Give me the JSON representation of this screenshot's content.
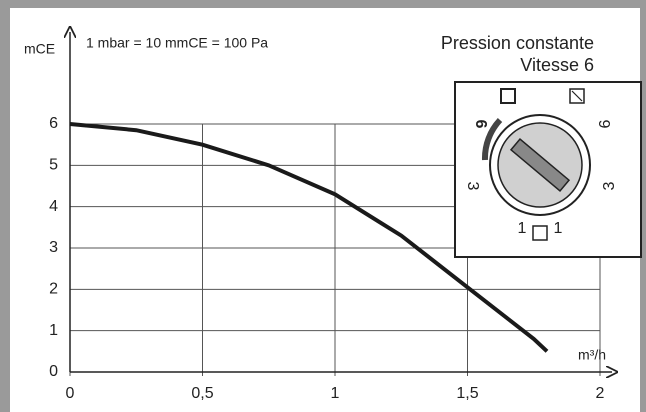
{
  "chart_data": {
    "type": "line",
    "note": "1 mbar = 10 mmCE = 100 Pa",
    "title": "Pression constante",
    "subtitle": "Vitesse 6",
    "ylabel": "mCE",
    "xlabel": "m³/h",
    "dial_marks": [
      "6",
      "3",
      "1",
      "1",
      "3",
      "6"
    ],
    "x": [
      0,
      0.25,
      0.5,
      0.75,
      1,
      1.25,
      1.5,
      1.75,
      1.8
    ],
    "series": [
      {
        "color": "#1a1a1a",
        "values": [
          6,
          5.85,
          5.5,
          5.0,
          4.3,
          3.3,
          2.05,
          0.8,
          0.5
        ]
      }
    ],
    "xlim": [
      0,
      2
    ],
    "ylim": [
      0,
      6
    ],
    "xticks": [
      0,
      {
        "value": 0.5,
        "label": "0,5"
      },
      1,
      {
        "value": 1.5,
        "label": "1,5"
      },
      2
    ],
    "yticks": [
      0,
      1,
      2,
      3,
      4,
      5,
      6
    ],
    "grid": true
  }
}
